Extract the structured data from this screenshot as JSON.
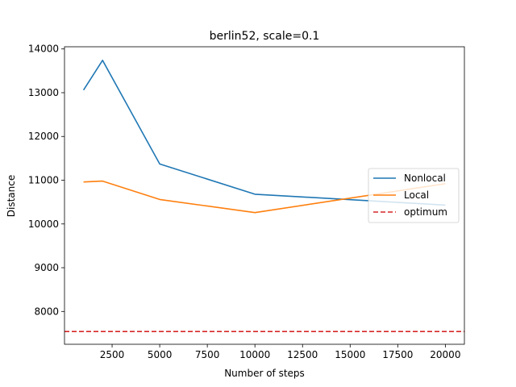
{
  "chart_data": {
    "type": "line",
    "title": "berlin52, scale=0.1",
    "xlabel": "Number of steps",
    "ylabel": "Distance",
    "xlim": [
      0,
      21000
    ],
    "ylim": [
      7250,
      14050
    ],
    "xticks": [
      2500,
      5000,
      7500,
      10000,
      12500,
      15000,
      17500,
      20000
    ],
    "xtick_labels": [
      "2500",
      "5000",
      "7500",
      "10000",
      "12500",
      "15000",
      "17500",
      "20000"
    ],
    "yticks": [
      8000,
      9000,
      10000,
      11000,
      12000,
      13000,
      14000
    ],
    "ytick_labels": [
      "8000",
      "9000",
      "10000",
      "11000",
      "12000",
      "13000",
      "14000"
    ],
    "grid": false,
    "legend_position": "center-right",
    "series": [
      {
        "name": "Nonlocal",
        "color": "#1f77b4",
        "style": "solid",
        "x": [
          1000,
          2000,
          5000,
          10000,
          20000
        ],
        "y": [
          13060,
          13740,
          11370,
          10680,
          10430
        ]
      },
      {
        "name": "Local",
        "color": "#ff7f0e",
        "style": "solid",
        "x": [
          1000,
          2000,
          5000,
          10000,
          20000
        ],
        "y": [
          10960,
          10980,
          10560,
          10260,
          10920
        ]
      },
      {
        "name": "optimum",
        "color": "#d62728",
        "style": "dashed",
        "hline": 7542
      }
    ]
  }
}
